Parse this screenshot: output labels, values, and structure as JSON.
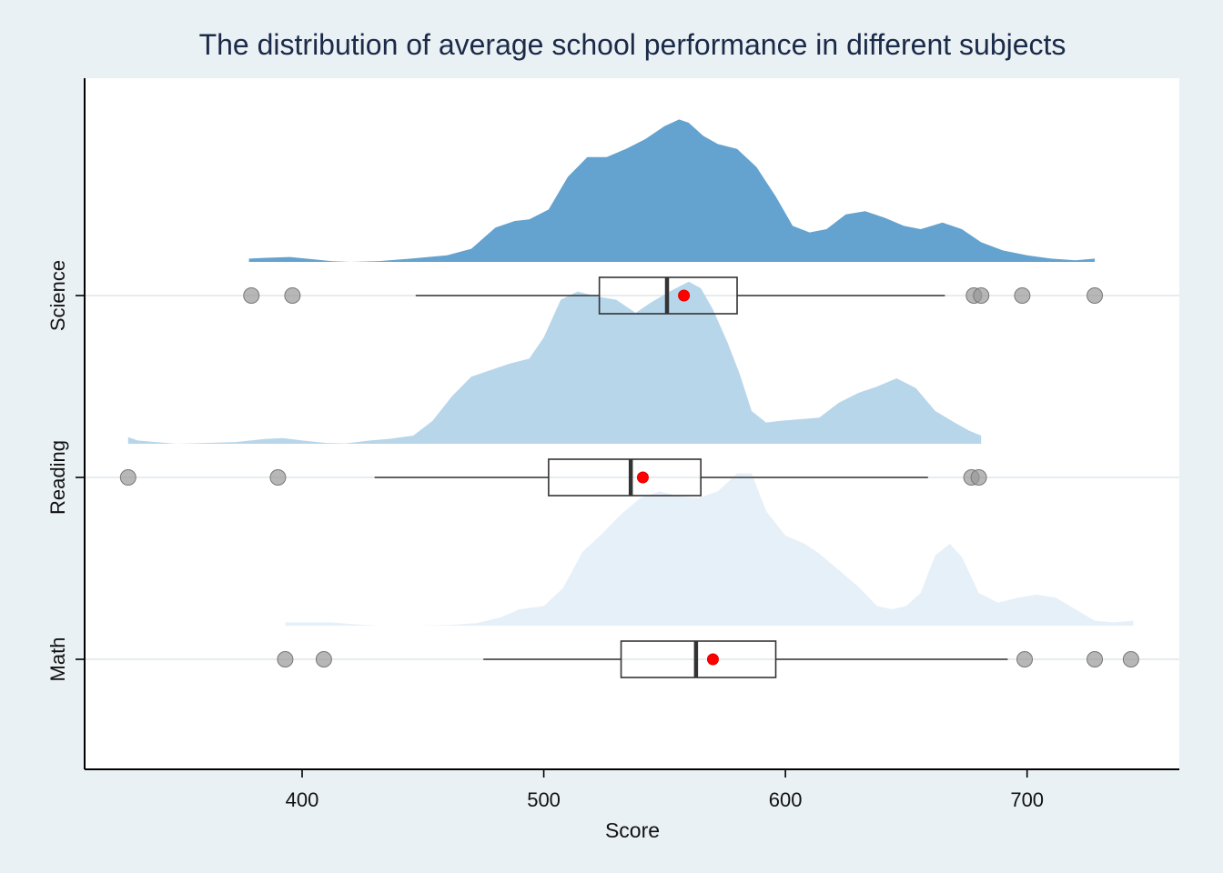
{
  "chart_data": {
    "type": "area",
    "subtype": "raincloud",
    "title": "The distribution of average school performance in different subjects",
    "xlabel": "Score",
    "ylabel": "",
    "xlim": [
      310,
      763
    ],
    "xticks": [
      400,
      500,
      600,
      700
    ],
    "categories": [
      "Science",
      "Reading",
      "Math"
    ],
    "grid": "horizontal",
    "legend": "none",
    "colors": {
      "page_background": "#eaf1f4",
      "plot_background": "#ffffff",
      "Science": "#64a2cf",
      "Reading": "#b7d6ea",
      "Math": "#e6f0f8",
      "mean_marker": "#ff0000",
      "outlier": "#999999"
    },
    "series": [
      {
        "name": "Science",
        "density": [
          [
            378,
            0.02
          ],
          [
            385,
            0.025
          ],
          [
            395,
            0.03
          ],
          [
            405,
            0.015
          ],
          [
            412,
            0.005
          ],
          [
            420,
            0.0
          ],
          [
            432,
            0.005
          ],
          [
            445,
            0.02
          ],
          [
            460,
            0.04
          ],
          [
            470,
            0.08
          ],
          [
            480,
            0.21
          ],
          [
            488,
            0.25
          ],
          [
            494,
            0.26
          ],
          [
            502,
            0.32
          ],
          [
            510,
            0.52
          ],
          [
            518,
            0.64
          ],
          [
            526,
            0.64
          ],
          [
            534,
            0.69
          ],
          [
            542,
            0.75
          ],
          [
            550,
            0.83
          ],
          [
            556,
            0.87
          ],
          [
            560,
            0.85
          ],
          [
            566,
            0.77
          ],
          [
            572,
            0.72
          ],
          [
            580,
            0.69
          ],
          [
            588,
            0.58
          ],
          [
            596,
            0.4
          ],
          [
            603,
            0.22
          ],
          [
            610,
            0.18
          ],
          [
            617,
            0.2
          ],
          [
            625,
            0.29
          ],
          [
            633,
            0.31
          ],
          [
            641,
            0.27
          ],
          [
            649,
            0.22
          ],
          [
            656,
            0.2
          ],
          [
            665,
            0.24
          ],
          [
            673,
            0.2
          ],
          [
            681,
            0.12
          ],
          [
            690,
            0.07
          ],
          [
            700,
            0.04
          ],
          [
            710,
            0.02
          ],
          [
            720,
            0.01
          ],
          [
            728,
            0.02
          ]
        ],
        "box": {
          "whisker_low": 447,
          "q1": 523,
          "median": 551,
          "q3": 580,
          "whisker_high": 666
        },
        "mean": 558,
        "outliers": [
          379,
          396,
          678,
          681,
          698,
          728
        ]
      },
      {
        "name": "Reading",
        "density": [
          [
            328,
            0.04
          ],
          [
            332,
            0.02
          ],
          [
            340,
            0.01
          ],
          [
            348,
            0.0
          ],
          [
            360,
            0.005
          ],
          [
            372,
            0.01
          ],
          [
            385,
            0.03
          ],
          [
            392,
            0.035
          ],
          [
            400,
            0.02
          ],
          [
            410,
            0.005
          ],
          [
            418,
            0.002
          ],
          [
            428,
            0.02
          ],
          [
            436,
            0.03
          ],
          [
            446,
            0.05
          ],
          [
            454,
            0.14
          ],
          [
            462,
            0.29
          ],
          [
            470,
            0.41
          ],
          [
            478,
            0.45
          ],
          [
            486,
            0.49
          ],
          [
            494,
            0.52
          ],
          [
            500,
            0.65
          ],
          [
            507,
            0.88
          ],
          [
            514,
            0.93
          ],
          [
            522,
            0.9
          ],
          [
            530,
            0.88
          ],
          [
            538,
            0.8
          ],
          [
            544,
            0.86
          ],
          [
            552,
            0.93
          ],
          [
            560,
            0.99
          ],
          [
            565,
            0.95
          ],
          [
            570,
            0.82
          ],
          [
            576,
            0.62
          ],
          [
            581,
            0.43
          ],
          [
            586,
            0.2
          ],
          [
            592,
            0.13
          ],
          [
            598,
            0.14
          ],
          [
            606,
            0.15
          ],
          [
            614,
            0.16
          ],
          [
            622,
            0.25
          ],
          [
            630,
            0.31
          ],
          [
            638,
            0.35
          ],
          [
            646,
            0.4
          ],
          [
            654,
            0.34
          ],
          [
            662,
            0.2
          ],
          [
            670,
            0.13
          ],
          [
            676,
            0.08
          ],
          [
            681,
            0.05
          ]
        ],
        "box": {
          "whisker_low": 430,
          "q1": 502,
          "median": 536,
          "q3": 565,
          "whisker_high": 659
        },
        "mean": 541,
        "outliers": [
          328,
          390,
          677,
          680
        ]
      },
      {
        "name": "Math",
        "density": [
          [
            393,
            0.02
          ],
          [
            400,
            0.02
          ],
          [
            412,
            0.02
          ],
          [
            422,
            0.008
          ],
          [
            432,
            0.0
          ],
          [
            448,
            0.0
          ],
          [
            462,
            0.005
          ],
          [
            472,
            0.015
          ],
          [
            482,
            0.05
          ],
          [
            490,
            0.1
          ],
          [
            500,
            0.12
          ],
          [
            508,
            0.23
          ],
          [
            516,
            0.45
          ],
          [
            524,
            0.56
          ],
          [
            532,
            0.68
          ],
          [
            540,
            0.78
          ],
          [
            548,
            0.82
          ],
          [
            556,
            0.79
          ],
          [
            564,
            0.78
          ],
          [
            572,
            0.82
          ],
          [
            580,
            0.93
          ],
          [
            586,
            0.93
          ],
          [
            592,
            0.7
          ],
          [
            600,
            0.55
          ],
          [
            608,
            0.5
          ],
          [
            614,
            0.44
          ],
          [
            622,
            0.34
          ],
          [
            630,
            0.24
          ],
          [
            638,
            0.12
          ],
          [
            644,
            0.1
          ],
          [
            650,
            0.12
          ],
          [
            656,
            0.2
          ],
          [
            662,
            0.43
          ],
          [
            668,
            0.5
          ],
          [
            673,
            0.42
          ],
          [
            680,
            0.2
          ],
          [
            688,
            0.14
          ],
          [
            696,
            0.17
          ],
          [
            704,
            0.19
          ],
          [
            712,
            0.17
          ],
          [
            720,
            0.1
          ],
          [
            728,
            0.03
          ],
          [
            736,
            0.02
          ],
          [
            744,
            0.03
          ]
        ],
        "box": {
          "whisker_low": 475,
          "q1": 532,
          "median": 563,
          "q3": 596,
          "whisker_high": 692
        },
        "mean": 570,
        "outliers": [
          393,
          409,
          699,
          728,
          743
        ]
      }
    ]
  }
}
